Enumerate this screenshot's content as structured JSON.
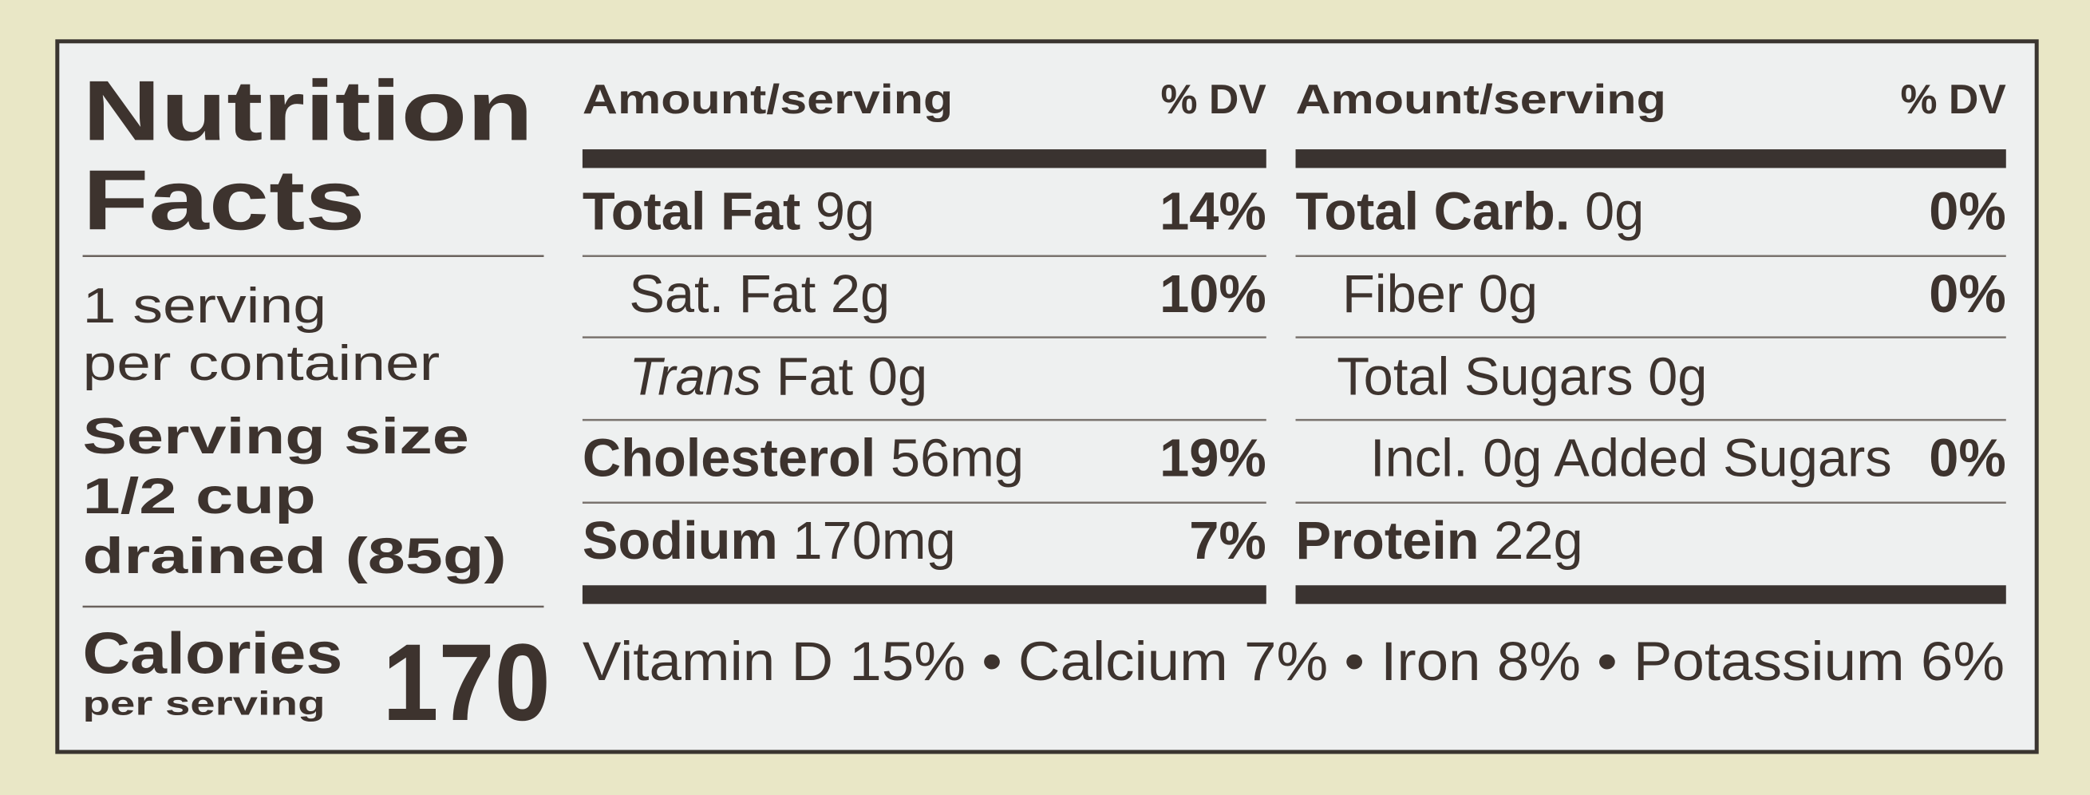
{
  "title_lines": [
    "Nutrition",
    "Facts"
  ],
  "servings_lines": [
    "1 serving",
    "per container"
  ],
  "serving_size_lines": [
    "Serving size",
    "1/2 cup",
    "drained (85g)"
  ],
  "calories": {
    "label": "Calories",
    "sub": "per serving",
    "value": "170"
  },
  "columns": [
    {
      "header": {
        "amount": "Amount/serving",
        "dv": "% DV"
      },
      "rows": [
        {
          "name": "Total Fat",
          "amount": "9g",
          "dv": "14%"
        },
        {
          "name": "Sat. Fat",
          "amount": "2g",
          "dv": "10%"
        },
        {
          "prefix": "Trans",
          "name": "Fat",
          "amount": "0g"
        },
        {
          "name": "Cholesterol",
          "amount": "56mg",
          "dv": "19%"
        },
        {
          "name": "Sodium",
          "amount": "170mg",
          "dv": "7%"
        }
      ]
    },
    {
      "header": {
        "amount": "Amount/serving",
        "dv": "% DV"
      },
      "rows": [
        {
          "name": "Total Carb.",
          "amount": "0g",
          "dv": "0%"
        },
        {
          "name": "Fiber",
          "amount": "0g",
          "dv": "0%"
        },
        {
          "name": "Total Sugars",
          "amount": "0g"
        },
        {
          "name": "Incl. 0g Added Sugars",
          "dv": "0%"
        },
        {
          "name": "Protein",
          "amount": "22g"
        }
      ]
    }
  ],
  "vitamins": "Vitamin D 15% • Calcium 7% • Iron 8% • Potassium 6%"
}
